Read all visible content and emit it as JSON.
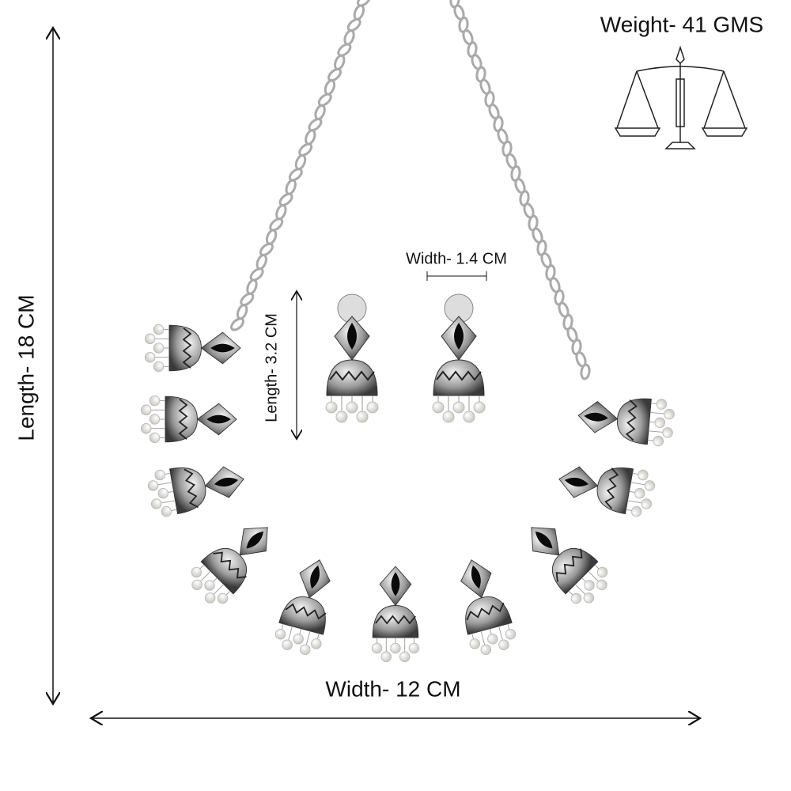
{
  "annotations": {
    "weight": "Weight- 41 GMS",
    "necklace_length": "Length- 18 CM",
    "necklace_width": "Width- 12 CM",
    "earring_width": "Width- 1.4 CM",
    "earring_length": "Length- 3.2 CM"
  }
}
